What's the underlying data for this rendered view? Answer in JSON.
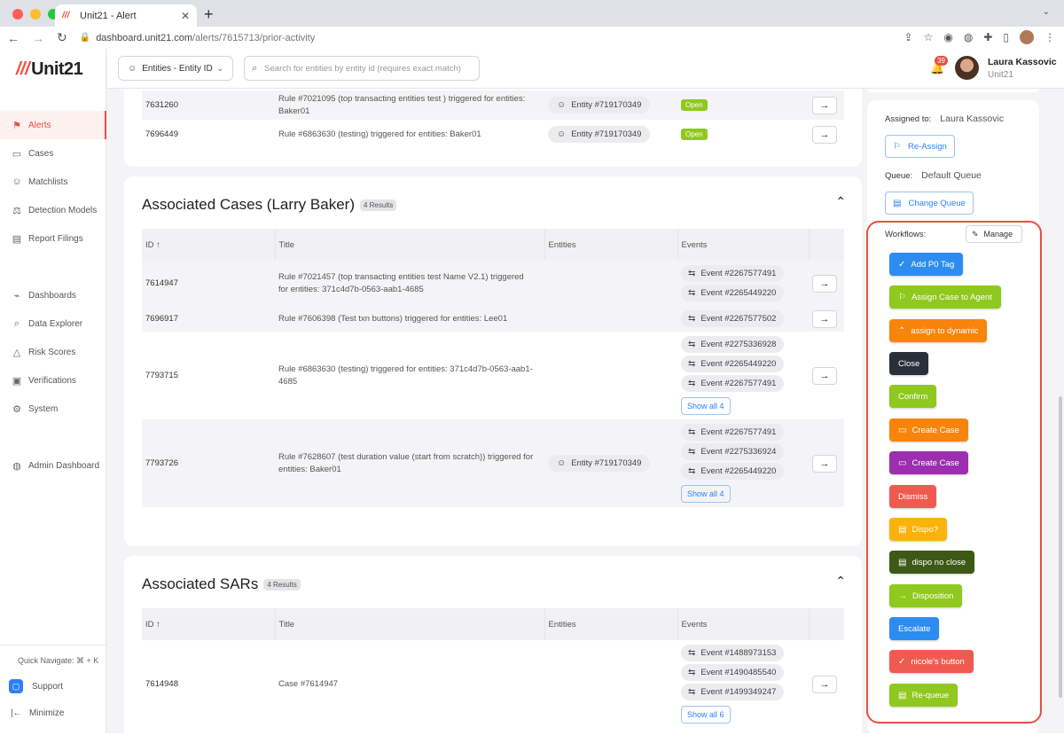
{
  "browser": {
    "tab_title": "Unit21 - Alert",
    "favicon": "///",
    "url_host": "dashboard.unit21.com",
    "url_path": "/alerts/7615713/prior-activity"
  },
  "app": {
    "logo_text": "Unit21",
    "logo_mark": "///",
    "entity_selector": "Entities - Entity ID",
    "search_placeholder": "Search for entities by entity id (requires exact match)",
    "notification_count": "39",
    "user_name": "Laura Kassovic",
    "user_org": "Unit21"
  },
  "sidebar": {
    "items": [
      {
        "label": "Alerts",
        "icon": "flag-icon",
        "glyph": "⚑"
      },
      {
        "label": "Cases",
        "icon": "briefcase-icon",
        "glyph": "▭"
      },
      {
        "label": "Matchlists",
        "icon": "person-plus-icon",
        "glyph": "☺"
      },
      {
        "label": "Detection Models",
        "icon": "scale-icon",
        "glyph": "⚖"
      },
      {
        "label": "Report Filings",
        "icon": "report-icon",
        "glyph": "▤"
      },
      {
        "label": "Dashboards",
        "icon": "chart-icon",
        "glyph": "⌁"
      },
      {
        "label": "Data Explorer",
        "icon": "data-search-icon",
        "glyph": "⌕"
      },
      {
        "label": "Risk Scores",
        "icon": "warning-icon",
        "glyph": "△"
      },
      {
        "label": "Verifications",
        "icon": "id-card-icon",
        "glyph": "▣"
      },
      {
        "label": "System",
        "icon": "gear-icon",
        "glyph": "⚙"
      },
      {
        "label": "Admin Dashboard",
        "icon": "globe-icon",
        "glyph": "◍"
      }
    ],
    "quick_navigate": "Quick Navigate: ⌘ + K",
    "support": "Support",
    "minimize": "Minimize"
  },
  "prior_alerts": {
    "rows": [
      {
        "id": "7631260",
        "title": "Rule #7021095 (top transacting entities test ) triggered for entities: Baker01",
        "entity": "Entity #719170349",
        "status": "Open"
      },
      {
        "id": "7696449",
        "title": "Rule #6863630 (testing) triggered for entities: Baker01",
        "entity": "Entity #719170349",
        "status": "Open"
      }
    ]
  },
  "cases": {
    "title": "Associated Cases (Larry Baker)",
    "count": "4 Results",
    "headers": {
      "id": "ID",
      "title": "Title",
      "entities": "Entities",
      "events": "Events"
    },
    "rows": [
      {
        "id": "7614947",
        "title": "Rule #7021457 (top transacting entities test Name V2.1) triggered for entities: 371c4d7b-0563-aab1-4685",
        "entity": "",
        "events": [
          "Event #2267577491",
          "Event #2265449220"
        ],
        "show_all": ""
      },
      {
        "id": "7696917",
        "title": "Rule #7606398 (Test txn buttons) triggered for entities: Lee01",
        "entity": "",
        "events": [
          "Event #2267577502"
        ],
        "show_all": ""
      },
      {
        "id": "7793715",
        "title": "Rule #6863630 (testing) triggered for entities: 371c4d7b-0563-aab1-4685",
        "entity": "",
        "events": [
          "Event #2275336928",
          "Event #2265449220",
          "Event #2267577491"
        ],
        "show_all": "Show all 4"
      },
      {
        "id": "7793726",
        "title": "Rule #7628607 (test duration value (start from scratch)) triggered for entities: Baker01",
        "entity": "Entity #719170349",
        "events": [
          "Event #2267577491",
          "Event #2275336924",
          "Event #2265449220"
        ],
        "show_all": "Show all 4"
      }
    ]
  },
  "sars": {
    "title": "Associated SARs",
    "count": "4 Results",
    "headers": {
      "id": "ID",
      "title": "Title",
      "entities": "Entities",
      "events": "Events"
    },
    "rows": [
      {
        "id": "7614948",
        "title": "Case #7614947",
        "entity": "",
        "events": [
          "Event #1488973153",
          "Event #1490485540",
          "Event #1499349247"
        ],
        "show_all": "Show all 6"
      }
    ]
  },
  "details": {
    "assigned_label": "Assigned to:",
    "assigned_value": "Laura Kassovic",
    "reassign": "Re-Assign",
    "queue_label": "Queue:",
    "queue_value": "Default Queue",
    "change_queue": "Change Queue",
    "workflows_label": "Workflows:",
    "manage": "Manage"
  },
  "workflows": [
    {
      "label": "Add P0 Tag",
      "color": "#2d8cf0",
      "icon": "check-circle-icon",
      "glyph": "✓"
    },
    {
      "label": "Assign Case to Agent",
      "color": "#8fc81e",
      "icon": "assign-icon",
      "glyph": "⚐"
    },
    {
      "label": "assign to dynamic",
      "color": "#f7850c",
      "icon": "double-chevron-up-icon",
      "glyph": "⌃"
    },
    {
      "label": "Close",
      "color": "#2b2f3a",
      "icon": "",
      "glyph": ""
    },
    {
      "label": "Confirm",
      "color": "#8fc81e",
      "icon": "",
      "glyph": ""
    },
    {
      "label": "Create Case",
      "color": "#f7850c",
      "icon": "briefcase-icon",
      "glyph": "▭"
    },
    {
      "label": "Create Case",
      "color": "#9b2fae",
      "icon": "briefcase-icon",
      "glyph": "▭"
    },
    {
      "label": "Dismiss",
      "color": "#ef5b50",
      "icon": "",
      "glyph": ""
    },
    {
      "label": "Dispo?",
      "color": "#f9b30a",
      "icon": "clipboard-icon",
      "glyph": "▤"
    },
    {
      "label": "dispo no close",
      "color": "#3c5a15",
      "icon": "clipboard-icon",
      "glyph": "▤"
    },
    {
      "label": "Disposition",
      "color": "#8fc81e",
      "icon": "arrow-right-icon",
      "glyph": "→"
    },
    {
      "label": "Escalate",
      "color": "#2d8cf0",
      "icon": "",
      "glyph": ""
    },
    {
      "label": "nicole's button",
      "color": "#ef5b50",
      "icon": "check-circle-icon",
      "glyph": "✓"
    },
    {
      "label": "Re-queue",
      "color": "#8fc81e",
      "icon": "clipboard-icon",
      "glyph": "▤"
    }
  ]
}
